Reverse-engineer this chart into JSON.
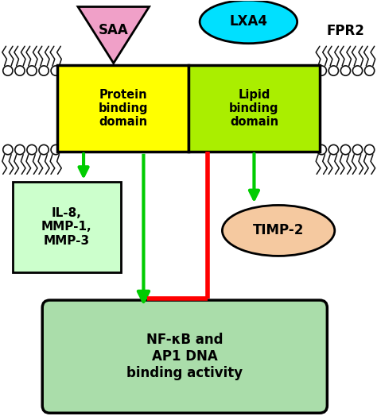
{
  "fig_width": 4.74,
  "fig_height": 5.24,
  "bg_color": "#ffffff",
  "saa_label": "SAA",
  "lxa4_label": "LXA4",
  "fpr2_label": "FPR2",
  "protein_domain_label": "Protein\nbinding\ndomain",
  "lipid_domain_label": "Lipid\nbinding\ndomain",
  "il8_label": "IL-8,\nMMP-1,\nMMP-3",
  "timp_label": "TIMP-2",
  "nfkb_label": "NF-κB and\nAP1 DNA\nbinding activity",
  "saa_color": "#f0a0c8",
  "saa_edge": "#000000",
  "lxa4_color": "#00e0ff",
  "lxa4_edge": "#000000",
  "protein_domain_color": "#ffff00",
  "lipid_domain_color": "#aaee00",
  "domain_edge": "#000000",
  "il8_box_color": "#ccffcc",
  "il8_box_edge": "#000000",
  "timp_oval_color": "#f5c9a0",
  "timp_oval_edge": "#000000",
  "nfkb_box_color": "#aaddaa",
  "nfkb_box_edge": "#000000",
  "arrow_green": "#00cc00",
  "arrow_red": "#ff0000",
  "text_color": "#000000"
}
